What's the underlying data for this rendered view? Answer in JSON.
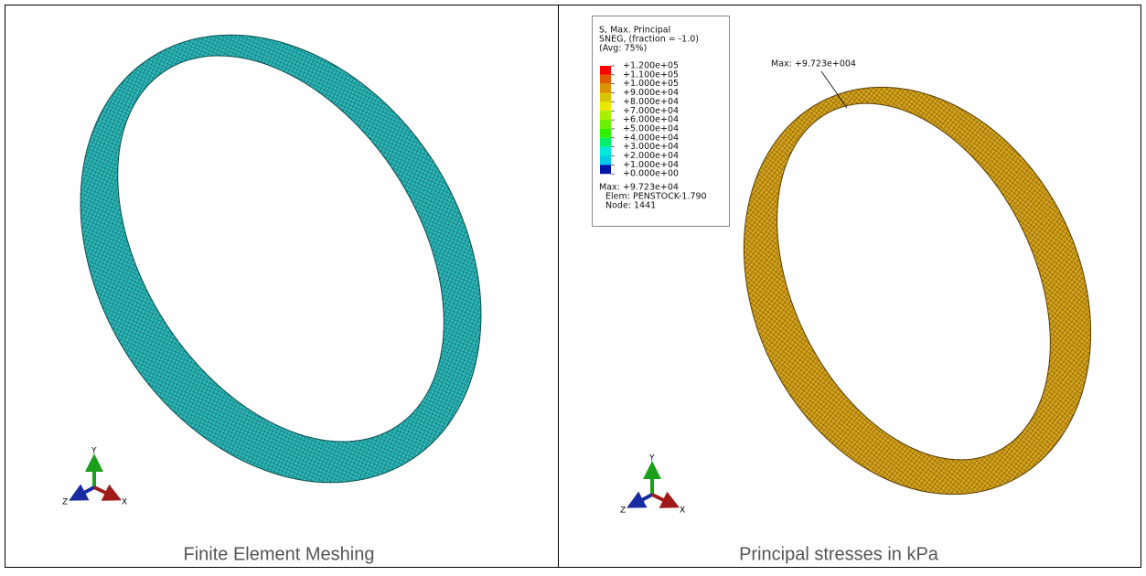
{
  "left_panel": {
    "caption": "Finite Element Meshing",
    "triad": {
      "y": "Y",
      "z": "Z",
      "x": "X"
    }
  },
  "right_panel": {
    "caption": "Principal stresses in kPa",
    "triad": {
      "y": "Y",
      "z": "Z",
      "x": "X"
    },
    "annotation": "Max: +9.723e+004",
    "legend": {
      "title_lines": [
        "S, Max. Principal",
        "SNEG, (fraction = -1.0)",
        "(Avg: 75%)"
      ],
      "labels": [
        "+1.200e+05",
        "+1.100e+05",
        "+1.000e+05",
        "+9.000e+04",
        "+8.000e+04",
        "+7.000e+04",
        "+6.000e+04",
        "+5.000e+04",
        "+4.000e+04",
        "+3.000e+04",
        "+2.000e+04",
        "+1.000e+04",
        "+0.000e+00"
      ],
      "colors": [
        "#ff0000",
        "#e05a00",
        "#d99200",
        "#d9c400",
        "#e8e800",
        "#a8f000",
        "#6cf000",
        "#2ef000",
        "#00f06c",
        "#00e8d8",
        "#00c8e8",
        "#0014a8"
      ],
      "footer_lines": [
        "Max: +9.723e+04",
        "Elem: PENSTOCK-1.790",
        "Node: 1441"
      ]
    }
  }
}
